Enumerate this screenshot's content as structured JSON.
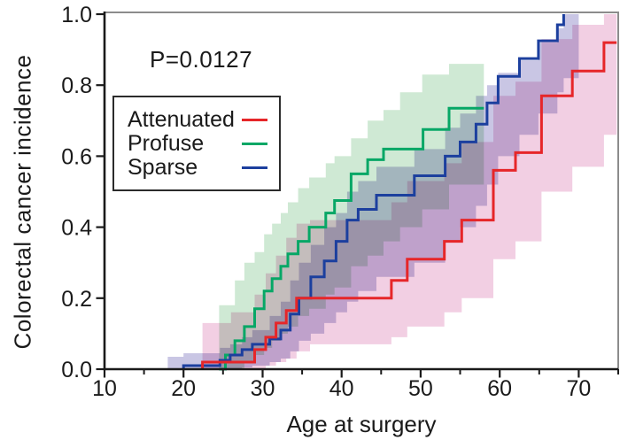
{
  "figure": {
    "ylabel": "Colorectal cancer incidence",
    "xlabel": "Age at surgery",
    "p_value_label": "P=0.0127"
  },
  "chart_data": {
    "type": "line",
    "variant": "kaplan-meier-cumulative-incidence-steps-with-confidence-bands",
    "title": "",
    "xlabel": "Age at surgery",
    "ylabel": "Colorectal cancer incidence",
    "annotation": {
      "text": "P=0.0127"
    },
    "xlim": [
      10,
      75
    ],
    "ylim": [
      0,
      1.0
    ],
    "x_major_ticks": [
      10,
      20,
      30,
      40,
      50,
      60,
      70
    ],
    "x_minor_ticks": [
      15,
      25,
      35,
      45,
      55,
      65,
      75
    ],
    "y_tick_labels": [
      "0.0",
      "0.2",
      "0.4",
      "0.6",
      "0.8",
      "1.0"
    ],
    "grid": false,
    "legend_position": "upper-left-inside",
    "axis_color": "#1a1a1a",
    "frame_color": "#8c8c8c",
    "series": [
      {
        "name": "Profuse",
        "color": "#07a766",
        "band_color": "#cfe9d4",
        "start_age": 24.5,
        "end_age": 58.0,
        "steps": [
          [
            25.3,
            0.04
          ],
          [
            26.5,
            0.08
          ],
          [
            27.7,
            0.12
          ],
          [
            29,
            0.17
          ],
          [
            30.2,
            0.22
          ],
          [
            31.2,
            0.255
          ],
          [
            32.3,
            0.29
          ],
          [
            33.2,
            0.325
          ],
          [
            34.5,
            0.36
          ],
          [
            35.9,
            0.4
          ],
          [
            38,
            0.44
          ],
          [
            39.1,
            0.475
          ],
          [
            41.2,
            0.55
          ],
          [
            43.3,
            0.59
          ],
          [
            45.3,
            0.62
          ],
          [
            50.3,
            0.675
          ],
          [
            53.6,
            0.735
          ]
        ],
        "band_end_age": 58.0,
        "band": [
          [
            24.5,
            0,
            0.18
          ],
          [
            26.5,
            0,
            0.25
          ],
          [
            27.7,
            0.02,
            0.3
          ],
          [
            29,
            0.04,
            0.33
          ],
          [
            30.2,
            0.06,
            0.38
          ],
          [
            31.2,
            0.08,
            0.41
          ],
          [
            32.3,
            0.1,
            0.44
          ],
          [
            33.2,
            0.12,
            0.47
          ],
          [
            34.5,
            0.15,
            0.51
          ],
          [
            35.9,
            0.17,
            0.54
          ],
          [
            38,
            0.21,
            0.58
          ],
          [
            39.1,
            0.23,
            0.6
          ],
          [
            41.2,
            0.29,
            0.65
          ],
          [
            43.3,
            0.32,
            0.7
          ],
          [
            45.3,
            0.36,
            0.73
          ],
          [
            47.4,
            0.4,
            0.78
          ],
          [
            50.2,
            0.45,
            0.83
          ],
          [
            53.6,
            0.52,
            0.86
          ]
        ]
      },
      {
        "name": "Sparse",
        "color": "#1c3f9e",
        "band_color": "#c9c6e4",
        "start_age": 20.0,
        "end_age": 68.1,
        "steps": [
          [
            20,
            0.01
          ],
          [
            24.6,
            0.025
          ],
          [
            25.9,
            0.04
          ],
          [
            27.4,
            0.055
          ],
          [
            28.7,
            0.07
          ],
          [
            30.9,
            0.085
          ],
          [
            32.3,
            0.11
          ],
          [
            33.5,
            0.155
          ],
          [
            34.6,
            0.2
          ],
          [
            36.1,
            0.26
          ],
          [
            37.8,
            0.305
          ],
          [
            39.3,
            0.36
          ],
          [
            40.7,
            0.42
          ],
          [
            42.1,
            0.45
          ],
          [
            44.4,
            0.49
          ],
          [
            49.2,
            0.545
          ],
          [
            53.1,
            0.6
          ],
          [
            55.0,
            0.64
          ],
          [
            57.0,
            0.69
          ],
          [
            58.4,
            0.75
          ],
          [
            59.8,
            0.825
          ],
          [
            62.5,
            0.875
          ],
          [
            64.9,
            0.925
          ],
          [
            67.3,
            0.97
          ],
          [
            68.1,
            1.0
          ]
        ],
        "band_end_age": 70.0,
        "band": [
          [
            18,
            0,
            0.035
          ],
          [
            20,
            0,
            0.045
          ],
          [
            24.6,
            0,
            0.06
          ],
          [
            25.9,
            0,
            0.07
          ],
          [
            27.4,
            0.005,
            0.09
          ],
          [
            28.7,
            0.01,
            0.11
          ],
          [
            30.9,
            0.02,
            0.15
          ],
          [
            32.3,
            0.03,
            0.19
          ],
          [
            33.5,
            0.05,
            0.25
          ],
          [
            34.6,
            0.08,
            0.3
          ],
          [
            36.1,
            0.1,
            0.35
          ],
          [
            37.8,
            0.13,
            0.4
          ],
          [
            39.3,
            0.16,
            0.44
          ],
          [
            40.7,
            0.19,
            0.5
          ],
          [
            42.1,
            0.22,
            0.53
          ],
          [
            44.4,
            0.26,
            0.57
          ],
          [
            49.2,
            0.3,
            0.62
          ],
          [
            53.1,
            0.36,
            0.68
          ],
          [
            55,
            0.4,
            0.72
          ],
          [
            57,
            0.46,
            0.77
          ],
          [
            58.4,
            0.52,
            0.8
          ],
          [
            59.8,
            0.6,
            0.835
          ],
          [
            62.5,
            0.66,
            0.87
          ],
          [
            64.9,
            0.72,
            0.92
          ],
          [
            67.3,
            0.78,
            0.96
          ],
          [
            68.1,
            0.82,
            1.0
          ]
        ]
      },
      {
        "name": "Attenuated",
        "color": "#e62629",
        "band_color": "#f2cfe3",
        "start_age": 22.4,
        "end_age": 74.8,
        "steps": [
          [
            22.4,
            0.02
          ],
          [
            29,
            0.055
          ],
          [
            30.4,
            0.09
          ],
          [
            31.7,
            0.13
          ],
          [
            33,
            0.165
          ],
          [
            34.3,
            0.2
          ],
          [
            46.3,
            0.25
          ],
          [
            48.3,
            0.31
          ],
          [
            53,
            0.36
          ],
          [
            55.2,
            0.42
          ],
          [
            59.2,
            0.56
          ],
          [
            62,
            0.61
          ],
          [
            65.3,
            0.77
          ],
          [
            69.2,
            0.84
          ],
          [
            73.2,
            0.92
          ]
        ],
        "band_end_age": 74.8,
        "band": [
          [
            22.4,
            0,
            0.13
          ],
          [
            26,
            0,
            0.16
          ],
          [
            29,
            0,
            0.21
          ],
          [
            30.4,
            0.01,
            0.27
          ],
          [
            31.7,
            0.02,
            0.32
          ],
          [
            33,
            0.03,
            0.37
          ],
          [
            34.3,
            0.05,
            0.41
          ],
          [
            36,
            0.07,
            0.42
          ],
          [
            46.3,
            0.09,
            0.47
          ],
          [
            48.3,
            0.12,
            0.53
          ],
          [
            53,
            0.16,
            0.58
          ],
          [
            55.2,
            0.2,
            0.64
          ],
          [
            59.2,
            0.31,
            0.77
          ],
          [
            62,
            0.36,
            0.81
          ],
          [
            65.3,
            0.5,
            0.93
          ],
          [
            69.2,
            0.57,
            0.97
          ],
          [
            73.2,
            0.66,
            1.0
          ]
        ]
      }
    ],
    "legend_order": [
      "Attenuated",
      "Profuse",
      "Sparse"
    ]
  }
}
